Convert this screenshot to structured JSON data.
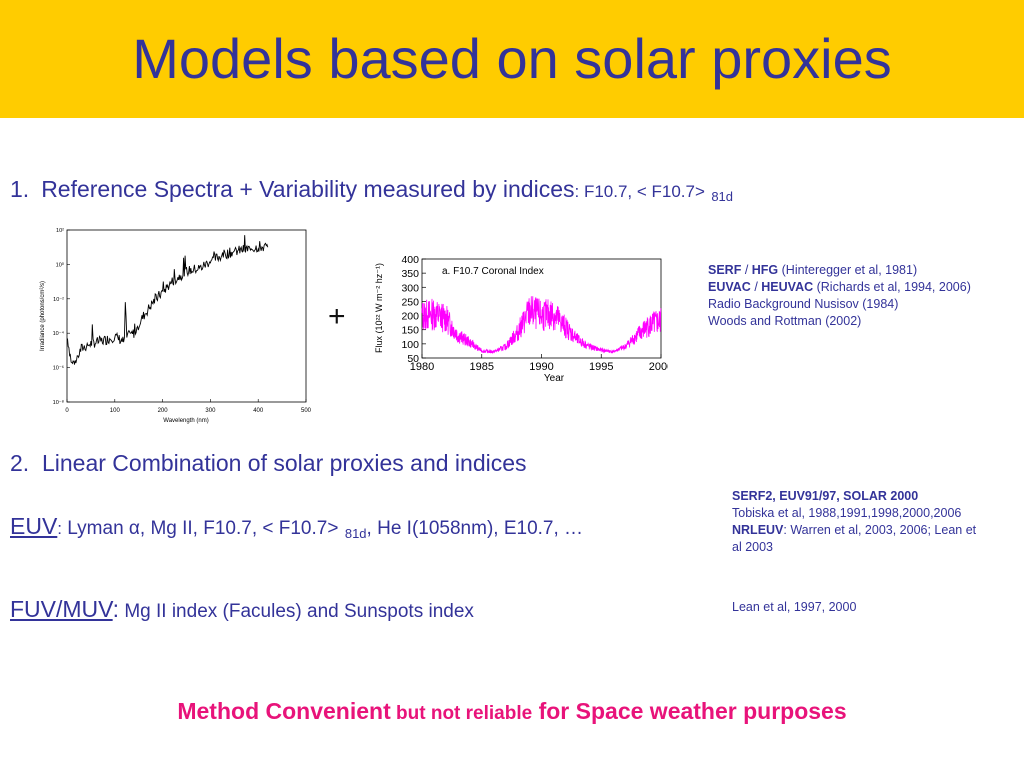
{
  "title": "Models based on solar proxies",
  "item1": {
    "number": "1.",
    "text": "Reference Spectra + Variability measured by indices",
    "indices": ": F10.7, < F10.7>",
    "subscript": "81d"
  },
  "plus": "+",
  "refs1": {
    "line1_bold": "SERF",
    "line1_sep": " / ",
    "line1_bold2": "HFG",
    "line1_rest": "  (Hinteregger et al, 1981)",
    "line2_bold": "EUVAC",
    "line2_sep": " / ",
    "line2_bold2": "HEUVAC",
    "line2_rest": " (Richards et al, 1994, 2006)",
    "line3": "Radio Background Nusisov (1984)",
    "line4": "Woods and Rottman (2002)"
  },
  "item2": {
    "number": "2.",
    "text": "Linear Combination of solar proxies and indices"
  },
  "euv": {
    "label": "EUV",
    "colon": ":",
    "text": " Lyman α, Mg II, F10.7, < F10.7>",
    "subscript": "81d",
    "rest": ", He I(1058nm), E10.7, …"
  },
  "refs2": {
    "line1_bold": "SERF2, EUV91/97, SOLAR 2000",
    "line2": "Tobiska et al, 1988,1991,1998,2000,2006",
    "line3_bold": "NRLEUV",
    "line3_rest": ": Warren et al, 2003, 2006; Lean et",
    "line4": "al 2003"
  },
  "fuv": {
    "label": "FUV/MUV",
    "colon": ":",
    "text": " Mg II index (Facules) and Sunspots index"
  },
  "refs3": {
    "line1": "Lean et al, 1997, 2000"
  },
  "bottom": {
    "part1": "Method Convenient",
    "part2": " but not reliable",
    "part3": " for Space weather purposes"
  },
  "colors": {
    "banner": "#ffcc00",
    "text": "#333399",
    "accent": "#e8137a",
    "f107_line": "#ff00ff"
  },
  "chart_data": [
    {
      "type": "line",
      "xlabel": "Wavelength (nm)",
      "ylabel": "Irradiance (photons/cm²/s)",
      "xlim": [
        0,
        500
      ],
      "x_ticks": [
        "0",
        "100",
        "200",
        "300",
        "400",
        "500"
      ],
      "y_scale": "log",
      "y_ticks": [
        "10²",
        "10⁰",
        "10⁻²",
        "10⁻⁴",
        "10⁻⁶",
        "10⁻⁸"
      ],
      "x": [
        1,
        10,
        20,
        30,
        50,
        80,
        100,
        120,
        122,
        125,
        140,
        160,
        180,
        200,
        220,
        250,
        280,
        300,
        330,
        360,
        400,
        420
      ],
      "y": [
        -4.3,
        -5.8,
        -5.5,
        -4.9,
        -4.6,
        -4.4,
        -4.2,
        -4.5,
        -2.3,
        -4.2,
        -4.0,
        -3.0,
        -2.2,
        -1.6,
        -1.0,
        -0.4,
        -0.2,
        0.2,
        0.6,
        0.8,
        1.0,
        1.0
      ]
    },
    {
      "type": "line",
      "title": "a. F10.7 Coronal Index",
      "xlabel": "Year",
      "ylabel": "Flux (10²² W m⁻² hz⁻¹)",
      "xlim": [
        1980,
        2000
      ],
      "ylim": [
        50,
        400
      ],
      "x_ticks": [
        "1980",
        "1985",
        "1990",
        "1995",
        "2000"
      ],
      "y_ticks": [
        "400",
        "350",
        "300",
        "250",
        "200",
        "150",
        "100",
        "50"
      ],
      "x": [
        1980,
        1981,
        1982,
        1983,
        1984,
        1985,
        1986,
        1987,
        1988,
        1989,
        1990,
        1991,
        1992,
        1993,
        1994,
        1995,
        1996,
        1997,
        1998,
        1999,
        2000
      ],
      "y": [
        200,
        205,
        190,
        130,
        105,
        75,
        72,
        90,
        140,
        215,
        200,
        205,
        160,
        115,
        90,
        78,
        72,
        90,
        130,
        165,
        180
      ]
    }
  ]
}
